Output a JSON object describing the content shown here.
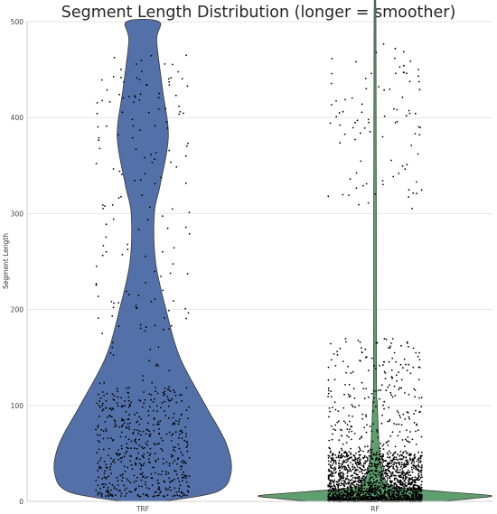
{
  "chart_data": {
    "type": "violin",
    "title": "Segment Length Distribution (longer = smoother)",
    "xlabel": "",
    "ylabel": "Segment Length",
    "ylim": [
      0,
      500
    ],
    "yticks": [
      0,
      100,
      200,
      300,
      400,
      500
    ],
    "categories": [
      "TRF",
      "RF"
    ],
    "grid": true,
    "series": [
      {
        "category": "TRF",
        "color": "#5470a8",
        "density_profile": [
          {
            "y": 0,
            "half_width": 0.09
          },
          {
            "y": 10,
            "half_width": 0.32
          },
          {
            "y": 30,
            "half_width": 0.38
          },
          {
            "y": 60,
            "half_width": 0.36
          },
          {
            "y": 100,
            "half_width": 0.27
          },
          {
            "y": 150,
            "half_width": 0.16
          },
          {
            "y": 200,
            "half_width": 0.1
          },
          {
            "y": 250,
            "half_width": 0.055
          },
          {
            "y": 300,
            "half_width": 0.05
          },
          {
            "y": 330,
            "half_width": 0.075
          },
          {
            "y": 380,
            "half_width": 0.11
          },
          {
            "y": 430,
            "half_width": 0.085
          },
          {
            "y": 480,
            "half_width": 0.06
          },
          {
            "y": 500,
            "half_width": 0.07
          }
        ],
        "points_summary": {
          "dense_range": [
            5,
            120
          ],
          "upper_cluster_range": [
            330,
            470
          ],
          "approx_count": 700
        }
      },
      {
        "category": "RF",
        "color": "#5f9e6e",
        "density_profile": [
          {
            "y": 0,
            "half_width": 0.28
          },
          {
            "y": 3,
            "half_width": 0.42
          },
          {
            "y": 6,
            "half_width": 0.5
          },
          {
            "y": 10,
            "half_width": 0.3
          },
          {
            "y": 15,
            "half_width": 0.09
          },
          {
            "y": 25,
            "half_width": 0.04
          },
          {
            "y": 50,
            "half_width": 0.02
          },
          {
            "y": 100,
            "half_width": 0.01
          },
          {
            "y": 150,
            "half_width": 0.006
          },
          {
            "y": 500,
            "half_width": 0.004
          }
        ],
        "points_summary": {
          "dense_range": [
            0,
            50
          ],
          "upper_cluster_range": [
            300,
            480
          ],
          "approx_count": 2500
        }
      }
    ]
  }
}
